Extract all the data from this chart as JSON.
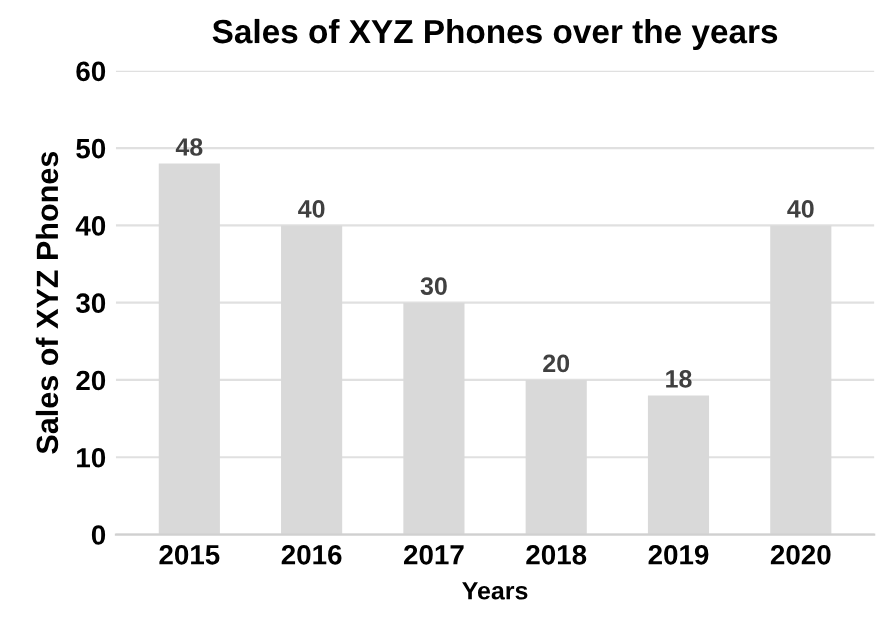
{
  "chart_data": {
    "type": "bar",
    "title": "Sales of XYZ Phones over the years",
    "xlabel": "Years",
    "ylabel": "Sales of XYZ Phones",
    "categories": [
      "2015",
      "2016",
      "2017",
      "2018",
      "2019",
      "2020"
    ],
    "values": [
      48,
      40,
      30,
      20,
      18,
      40
    ],
    "color": "#d9d9d9",
    "ylim": [
      0,
      60
    ],
    "yticks": [
      0,
      10,
      20,
      30,
      40,
      50,
      60
    ],
    "grid": "y",
    "data_labels": true
  }
}
